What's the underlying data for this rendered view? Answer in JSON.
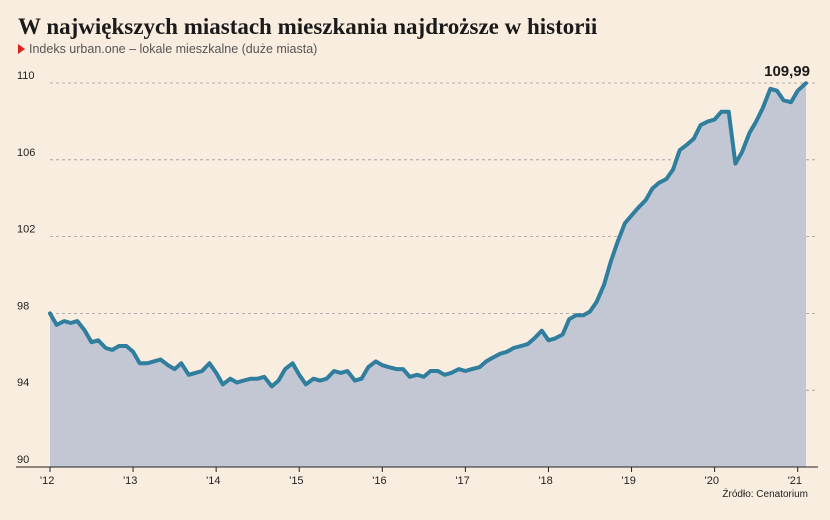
{
  "header": {
    "title": "W największych miastach mieszkania najdroższe w historii",
    "subtitle": "Indeks urban.one – lokale mieszkalne (duże miasta)"
  },
  "source": "Źródło: Cenatorium",
  "colors": {
    "line": "#2f7e9e",
    "area": "#c3c7d4",
    "grid": "#999999",
    "background": "#f9ede0",
    "marker": "#e0201b"
  },
  "chart_data": {
    "type": "area",
    "title": "W największych miastach mieszkania najdroższe w historii",
    "subtitle": "Indeks urban.one – lokale mieszkalne (duże miasta)",
    "xlabel": "",
    "ylabel": "",
    "ylim": [
      90,
      110
    ],
    "yticks": [
      90,
      94,
      98,
      102,
      106,
      110
    ],
    "xlim": [
      2012.0,
      2021.1
    ],
    "xticks": [
      {
        "x": 2012,
        "label": "'12"
      },
      {
        "x": 2013,
        "label": "'13"
      },
      {
        "x": 2014,
        "label": "'14"
      },
      {
        "x": 2015,
        "label": "'15"
      },
      {
        "x": 2016,
        "label": "'16"
      },
      {
        "x": 2017,
        "label": "'17"
      },
      {
        "x": 2018,
        "label": "'18"
      },
      {
        "x": 2019,
        "label": "'19"
      },
      {
        "x": 2020,
        "label": "'20"
      },
      {
        "x": 2021,
        "label": "'21"
      }
    ],
    "grid": true,
    "annotation": {
      "label": "109,99",
      "x": 2021.1,
      "y": 109.99
    },
    "series": [
      {
        "points": [
          [
            2012.0,
            98.0
          ],
          [
            2012.08,
            97.4
          ],
          [
            2012.17,
            97.6
          ],
          [
            2012.25,
            97.5
          ],
          [
            2012.33,
            97.6
          ],
          [
            2012.42,
            97.1
          ],
          [
            2012.5,
            96.5
          ],
          [
            2012.58,
            96.6
          ],
          [
            2012.67,
            96.2
          ],
          [
            2012.75,
            96.1
          ],
          [
            2012.83,
            96.3
          ],
          [
            2012.92,
            96.3
          ],
          [
            2013.0,
            96.0
          ],
          [
            2013.08,
            95.4
          ],
          [
            2013.17,
            95.4
          ],
          [
            2013.25,
            95.5
          ],
          [
            2013.33,
            95.6
          ],
          [
            2013.42,
            95.3
          ],
          [
            2013.5,
            95.1
          ],
          [
            2013.58,
            95.4
          ],
          [
            2013.67,
            94.8
          ],
          [
            2013.75,
            94.9
          ],
          [
            2013.83,
            95.0
          ],
          [
            2013.92,
            95.4
          ],
          [
            2014.0,
            94.9
          ],
          [
            2014.08,
            94.3
          ],
          [
            2014.17,
            94.6
          ],
          [
            2014.25,
            94.4
          ],
          [
            2014.33,
            94.5
          ],
          [
            2014.42,
            94.6
          ],
          [
            2014.5,
            94.6
          ],
          [
            2014.58,
            94.7
          ],
          [
            2014.67,
            94.2
          ],
          [
            2014.75,
            94.5
          ],
          [
            2014.83,
            95.1
          ],
          [
            2014.92,
            95.4
          ],
          [
            2015.0,
            94.8
          ],
          [
            2015.08,
            94.3
          ],
          [
            2015.17,
            94.6
          ],
          [
            2015.25,
            94.5
          ],
          [
            2015.33,
            94.6
          ],
          [
            2015.42,
            95.0
          ],
          [
            2015.5,
            94.9
          ],
          [
            2015.58,
            95.0
          ],
          [
            2015.67,
            94.5
          ],
          [
            2015.75,
            94.6
          ],
          [
            2015.83,
            95.2
          ],
          [
            2015.92,
            95.5
          ],
          [
            2016.0,
            95.3
          ],
          [
            2016.08,
            95.2
          ],
          [
            2016.17,
            95.1
          ],
          [
            2016.25,
            95.1
          ],
          [
            2016.33,
            94.7
          ],
          [
            2016.42,
            94.8
          ],
          [
            2016.5,
            94.7
          ],
          [
            2016.58,
            95.0
          ],
          [
            2016.67,
            95.0
          ],
          [
            2016.75,
            94.8
          ],
          [
            2016.83,
            94.9
          ],
          [
            2016.92,
            95.1
          ],
          [
            2017.0,
            95.0
          ],
          [
            2017.08,
            95.1
          ],
          [
            2017.17,
            95.2
          ],
          [
            2017.25,
            95.5
          ],
          [
            2017.33,
            95.7
          ],
          [
            2017.42,
            95.9
          ],
          [
            2017.5,
            96.0
          ],
          [
            2017.58,
            96.2
          ],
          [
            2017.67,
            96.3
          ],
          [
            2017.75,
            96.4
          ],
          [
            2017.83,
            96.7
          ],
          [
            2017.92,
            97.1
          ],
          [
            2018.0,
            96.6
          ],
          [
            2018.08,
            96.7
          ],
          [
            2018.17,
            96.9
          ],
          [
            2018.25,
            97.7
          ],
          [
            2018.33,
            97.9
          ],
          [
            2018.42,
            97.9
          ],
          [
            2018.5,
            98.1
          ],
          [
            2018.58,
            98.6
          ],
          [
            2018.67,
            99.5
          ],
          [
            2018.75,
            100.7
          ],
          [
            2018.83,
            101.7
          ],
          [
            2018.92,
            102.7
          ],
          [
            2019.0,
            103.1
          ],
          [
            2019.08,
            103.5
          ],
          [
            2019.17,
            103.9
          ],
          [
            2019.25,
            104.5
          ],
          [
            2019.33,
            104.8
          ],
          [
            2019.42,
            105.0
          ],
          [
            2019.5,
            105.5
          ],
          [
            2019.58,
            106.5
          ],
          [
            2019.67,
            106.8
          ],
          [
            2019.75,
            107.1
          ],
          [
            2019.83,
            107.8
          ],
          [
            2019.92,
            108.0
          ],
          [
            2020.0,
            108.1
          ],
          [
            2020.08,
            108.5
          ],
          [
            2020.17,
            108.5
          ],
          [
            2020.25,
            105.8
          ],
          [
            2020.33,
            106.4
          ],
          [
            2020.42,
            107.4
          ],
          [
            2020.5,
            108.0
          ],
          [
            2020.58,
            108.7
          ],
          [
            2020.67,
            109.7
          ],
          [
            2020.75,
            109.6
          ],
          [
            2020.83,
            109.1
          ],
          [
            2020.92,
            109.0
          ],
          [
            2021.0,
            109.6
          ],
          [
            2021.1,
            109.99
          ]
        ]
      }
    ]
  }
}
